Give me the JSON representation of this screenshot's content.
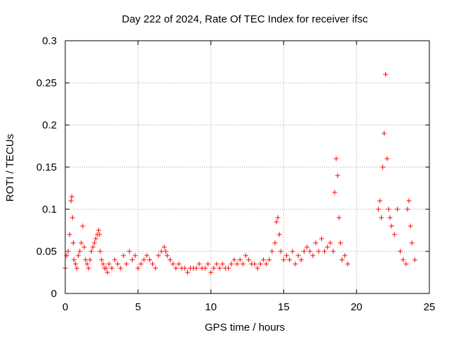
{
  "chart_data": {
    "type": "scatter",
    "title": "Day 222 of 2024, Rate Of TEC Index for receiver ifsc",
    "xlabel": "GPS time / hours",
    "ylabel": "ROTI / TECUs",
    "xlim": [
      0,
      25
    ],
    "ylim": [
      0,
      0.3
    ],
    "x_ticks": [
      "0",
      "5",
      "10",
      "15",
      "20",
      "25"
    ],
    "y_ticks": [
      "0",
      "0.05",
      "0.1",
      "0.15",
      "0.2",
      "0.25",
      "0.3"
    ],
    "grid": true,
    "marker": "plus",
    "color": "#ff0000",
    "series": [
      {
        "x": [
          0.0,
          0.1,
          0.2,
          0.3,
          0.4,
          0.45,
          0.5,
          0.55,
          0.6,
          0.7,
          0.8,
          0.9,
          1.0,
          1.1,
          1.2,
          1.3,
          1.4,
          1.5,
          1.6,
          1.7,
          1.8,
          1.9,
          2.0,
          2.1,
          2.2,
          2.3,
          2.35,
          2.4,
          2.5,
          2.6,
          2.7,
          2.8,
          2.9,
          3.0,
          3.2,
          3.4,
          3.6,
          3.8,
          4.0,
          4.2,
          4.4,
          4.6,
          4.8,
          5.0,
          5.2,
          5.4,
          5.6,
          5.8,
          6.0,
          6.2,
          6.4,
          6.6,
          6.8,
          6.9,
          7.0,
          7.2,
          7.4,
          7.6,
          7.8,
          8.0,
          8.2,
          8.4,
          8.6,
          8.8,
          9.0,
          9.2,
          9.4,
          9.6,
          9.8,
          10.0,
          10.2,
          10.4,
          10.6,
          10.8,
          11.0,
          11.2,
          11.4,
          11.6,
          11.8,
          12.0,
          12.2,
          12.4,
          12.6,
          12.8,
          13.0,
          13.2,
          13.4,
          13.6,
          13.8,
          14.0,
          14.2,
          14.4,
          14.5,
          14.6,
          14.7,
          14.8,
          15.0,
          15.2,
          15.4,
          15.6,
          15.8,
          16.0,
          16.2,
          16.4,
          16.6,
          16.8,
          17.0,
          17.2,
          17.4,
          17.6,
          17.8,
          18.0,
          18.2,
          18.4,
          18.5,
          18.6,
          18.7,
          18.8,
          18.9,
          19.0,
          19.2,
          19.4,
          21.5,
          21.6,
          21.7,
          21.8,
          21.9,
          22.0,
          22.1,
          22.2,
          22.3,
          22.4,
          22.6,
          22.8,
          23.0,
          23.2,
          23.4,
          23.5,
          23.6,
          23.7,
          23.8,
          24.0
        ],
        "y": [
          0.03,
          0.045,
          0.05,
          0.07,
          0.11,
          0.115,
          0.09,
          0.06,
          0.04,
          0.035,
          0.03,
          0.045,
          0.05,
          0.06,
          0.08,
          0.055,
          0.04,
          0.035,
          0.03,
          0.04,
          0.05,
          0.055,
          0.06,
          0.065,
          0.07,
          0.075,
          0.07,
          0.05,
          0.04,
          0.035,
          0.03,
          0.03,
          0.025,
          0.035,
          0.03,
          0.04,
          0.035,
          0.03,
          0.045,
          0.035,
          0.05,
          0.04,
          0.045,
          0.03,
          0.035,
          0.04,
          0.045,
          0.04,
          0.035,
          0.03,
          0.045,
          0.05,
          0.055,
          0.05,
          0.045,
          0.04,
          0.035,
          0.03,
          0.035,
          0.03,
          0.03,
          0.025,
          0.03,
          0.03,
          0.03,
          0.035,
          0.03,
          0.03,
          0.035,
          0.025,
          0.03,
          0.035,
          0.03,
          0.035,
          0.03,
          0.03,
          0.035,
          0.04,
          0.035,
          0.04,
          0.035,
          0.045,
          0.04,
          0.035,
          0.035,
          0.03,
          0.035,
          0.04,
          0.035,
          0.04,
          0.05,
          0.06,
          0.085,
          0.09,
          0.07,
          0.05,
          0.04,
          0.045,
          0.04,
          0.05,
          0.035,
          0.045,
          0.04,
          0.05,
          0.055,
          0.05,
          0.045,
          0.06,
          0.05,
          0.065,
          0.05,
          0.055,
          0.06,
          0.05,
          0.12,
          0.16,
          0.14,
          0.09,
          0.06,
          0.04,
          0.045,
          0.035,
          0.1,
          0.11,
          0.09,
          0.15,
          0.19,
          0.26,
          0.16,
          0.1,
          0.09,
          0.08,
          0.07,
          0.1,
          0.05,
          0.04,
          0.035,
          0.1,
          0.11,
          0.08,
          0.06,
          0.04
        ]
      }
    ]
  }
}
